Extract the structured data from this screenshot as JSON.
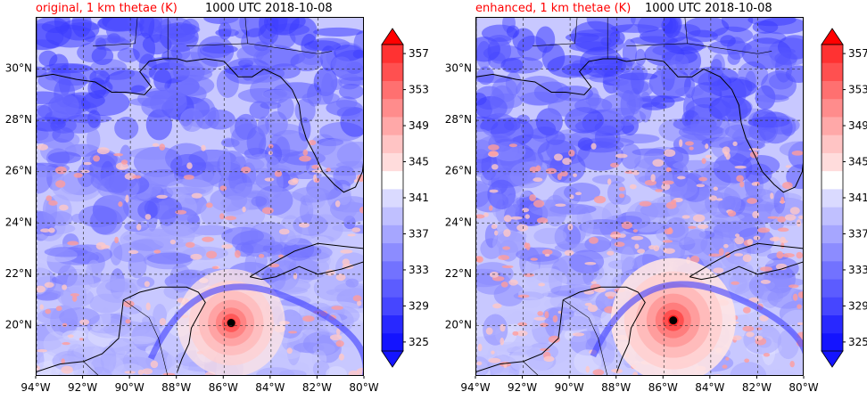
{
  "colors": {
    "title_left": "#ff0000",
    "title_right": "#000000",
    "ocean_base": "#c8c8ff"
  },
  "panels": [
    {
      "title_left": "original, 1 km thetae (K)",
      "title_right": "1000 UTC 2018-10-08",
      "storm_center_lon": -85.7,
      "storm_center_lat": 20.1,
      "warm_intensity": 0.55
    },
    {
      "title_left": "enhanced, 1 km thetae (K)",
      "title_right": "1000 UTC 2018-10-08",
      "storm_center_lon": -85.6,
      "storm_center_lat": 20.2,
      "warm_intensity": 1.0
    }
  ],
  "chart_data": {
    "type": "heatmap",
    "map_extent": {
      "lon": [
        -94,
        -80
      ],
      "lat": [
        18,
        32
      ]
    },
    "x_ticks": [
      "94°W",
      "92°W",
      "90°W",
      "88°W",
      "86°W",
      "84°W",
      "82°W",
      "80°W"
    ],
    "x_tick_values": [
      -94,
      -92,
      -90,
      -88,
      -86,
      -84,
      -82,
      -80
    ],
    "y_ticks": [
      "20°N",
      "22°N",
      "24°N",
      "26°N",
      "28°N",
      "30°N"
    ],
    "y_tick_values": [
      20,
      22,
      24,
      26,
      28,
      30
    ],
    "grid": true,
    "colorbar": {
      "min": 325,
      "max": 359,
      "step": 2,
      "tick_labels": [
        "325",
        "329",
        "333",
        "337",
        "341",
        "345",
        "349",
        "353",
        "357"
      ],
      "tick_values": [
        325,
        329,
        333,
        337,
        341,
        345,
        349,
        353,
        357
      ],
      "colors": [
        "#1414ff",
        "#2828ff",
        "#4646ff",
        "#5c5cff",
        "#7272ff",
        "#8c8cff",
        "#a6a6ff",
        "#c0c0ff",
        "#dadaff",
        "#ffffff",
        "#ffdcdc",
        "#ffc4c4",
        "#ffa8a8",
        "#ff8c8c",
        "#ff7070",
        "#ff5050",
        "#ff3232"
      ],
      "extend": "both"
    }
  }
}
